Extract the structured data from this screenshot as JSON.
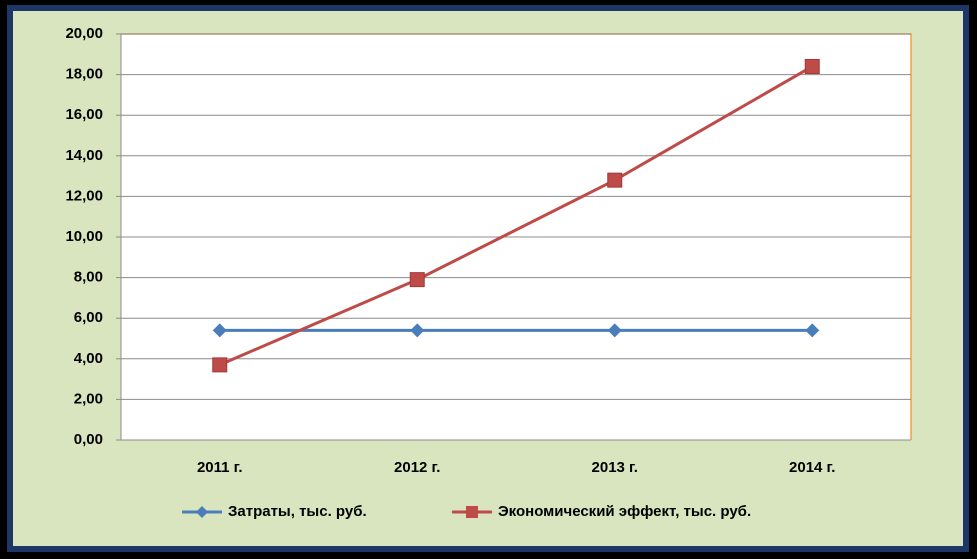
{
  "chart_data": {
    "type": "line",
    "categories": [
      "2011 г.",
      "2012 г.",
      "2013 г.",
      "2014 г."
    ],
    "series": [
      {
        "name": "Затраты, тыс. руб.",
        "color": "#4a7ebb",
        "marker": "diamond",
        "values": [
          5.4,
          5.4,
          5.4,
          5.4
        ]
      },
      {
        "name": "Экономический эффект, тыс. руб.",
        "color": "#be4b48",
        "marker": "square",
        "values": [
          3.7,
          7.9,
          12.8,
          18.4
        ]
      }
    ],
    "ylim": [
      0,
      20
    ],
    "yticks": [
      {
        "value": 0,
        "label": "0,00"
      },
      {
        "value": 2,
        "label": "2,00"
      },
      {
        "value": 4,
        "label": "4,00"
      },
      {
        "value": 6,
        "label": "6,00"
      },
      {
        "value": 8,
        "label": "8,00"
      },
      {
        "value": 10,
        "label": "10,00"
      },
      {
        "value": 12,
        "label": "12,00"
      },
      {
        "value": 14,
        "label": "14,00"
      },
      {
        "value": 16,
        "label": "16,00"
      },
      {
        "value": 18,
        "label": "18,00"
      },
      {
        "value": 20,
        "label": "20,00"
      }
    ],
    "grid": true,
    "legend": "bottom"
  }
}
